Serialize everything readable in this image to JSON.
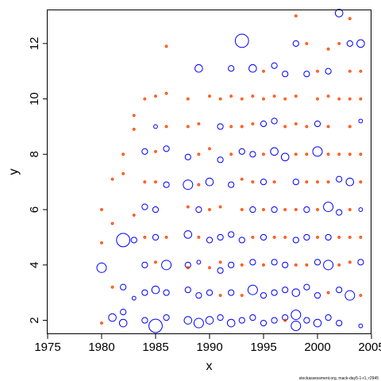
{
  "chart_data": {
    "type": "scatter",
    "title": "",
    "xlabel": "x",
    "ylabel": "y",
    "xlim": [
      1975,
      2005
    ],
    "ylim": [
      1.5,
      13.2
    ],
    "x_ticks": [
      1975,
      1980,
      1985,
      1990,
      1995,
      2000,
      2005
    ],
    "x_tick_labels": [
      "1975",
      "1980",
      "1985",
      "1990",
      "1995",
      "2000",
      "2005"
    ],
    "y_ticks": [
      2,
      4,
      6,
      8,
      10,
      12
    ],
    "y_tick_labels": [
      "2",
      "4",
      "6",
      "8",
      "10",
      "12"
    ],
    "grid": false,
    "legend": "none",
    "footnote": "stockassessment.org, mack-day5-1-r1, r2945",
    "colors": {
      "positive": "#0000ff",
      "negative": "#ff4500",
      "axis": "#000000"
    },
    "series": [
      {
        "name": "",
        "color": "#0000ff",
        "points": [
          [
            1980,
            3.9,
            5
          ],
          [
            1981,
            2.1,
            4
          ],
          [
            1982,
            1.9,
            4
          ],
          [
            1982,
            2.3,
            3
          ],
          [
            1982,
            3.2,
            3
          ],
          [
            1982,
            4.9,
            7
          ],
          [
            1983,
            4.9,
            3
          ],
          [
            1983,
            2.8,
            2
          ],
          [
            1984,
            2.0,
            3
          ],
          [
            1984,
            3.0,
            3
          ],
          [
            1984,
            4.0,
            3
          ],
          [
            1984,
            6.1,
            3
          ],
          [
            1984,
            8.1,
            3
          ],
          [
            1985,
            1.8,
            7
          ],
          [
            1985,
            3.1,
            4
          ],
          [
            1985,
            5.0,
            3
          ],
          [
            1985,
            6.0,
            3
          ],
          [
            1985,
            9.0,
            2
          ],
          [
            1986,
            2.1,
            3
          ],
          [
            1986,
            3.0,
            3
          ],
          [
            1986,
            4.0,
            5
          ],
          [
            1986,
            6.9,
            3
          ],
          [
            1986,
            8.2,
            3
          ],
          [
            1988,
            2.0,
            4
          ],
          [
            1988,
            3.1,
            3
          ],
          [
            1988,
            4.0,
            3
          ],
          [
            1988,
            5.1,
            4
          ],
          [
            1988,
            6.9,
            5
          ],
          [
            1988,
            7.9,
            3
          ],
          [
            1989,
            1.9,
            5
          ],
          [
            1989,
            2.9,
            3
          ],
          [
            1989,
            4.1,
            2
          ],
          [
            1989,
            6.0,
            3
          ],
          [
            1989,
            11.1,
            4
          ],
          [
            1990,
            2.0,
            4
          ],
          [
            1990,
            3.0,
            3
          ],
          [
            1990,
            4.9,
            3
          ],
          [
            1990,
            7.0,
            4
          ],
          [
            1991,
            2.1,
            3
          ],
          [
            1991,
            3.8,
            3
          ],
          [
            1991,
            5.0,
            3
          ],
          [
            1991,
            7.8,
            3
          ],
          [
            1991,
            9.0,
            3
          ],
          [
            1992,
            1.9,
            4
          ],
          [
            1992,
            3.0,
            3
          ],
          [
            1992,
            4.0,
            3
          ],
          [
            1992,
            5.1,
            3
          ],
          [
            1992,
            6.9,
            3
          ],
          [
            1992,
            11.1,
            3
          ],
          [
            1993,
            2.0,
            3
          ],
          [
            1993,
            4.9,
            3
          ],
          [
            1993,
            8.1,
            3
          ],
          [
            1993,
            12.1,
            7
          ],
          [
            1994,
            2.1,
            3
          ],
          [
            1994,
            3.1,
            5
          ],
          [
            1994,
            4.1,
            3
          ],
          [
            1994,
            6.0,
            3
          ],
          [
            1994,
            8.0,
            3
          ],
          [
            1994,
            11.1,
            4
          ],
          [
            1995,
            1.9,
            3
          ],
          [
            1995,
            2.9,
            3
          ],
          [
            1995,
            5.0,
            3
          ],
          [
            1995,
            7.0,
            3
          ],
          [
            1995,
            9.1,
            3
          ],
          [
            1996,
            2.0,
            3
          ],
          [
            1996,
            3.0,
            3
          ],
          [
            1996,
            4.1,
            3
          ],
          [
            1996,
            6.0,
            3
          ],
          [
            1996,
            8.1,
            4
          ],
          [
            1996,
            9.2,
            3
          ],
          [
            1996,
            11.2,
            3
          ],
          [
            1997,
            2.1,
            3
          ],
          [
            1997,
            3.1,
            3
          ],
          [
            1997,
            4.0,
            3
          ],
          [
            1997,
            7.9,
            4
          ],
          [
            1997,
            10.9,
            3
          ],
          [
            1998,
            1.8,
            5
          ],
          [
            1998,
            2.2,
            5
          ],
          [
            1998,
            3.0,
            4
          ],
          [
            1998,
            4.9,
            3
          ],
          [
            1998,
            7.0,
            3
          ],
          [
            1998,
            12.0,
            3
          ],
          [
            1999,
            2.0,
            3
          ],
          [
            1999,
            3.2,
            3
          ],
          [
            1999,
            5.0,
            3
          ],
          [
            1999,
            6.0,
            3
          ],
          [
            1999,
            10.9,
            3
          ],
          [
            2000,
            1.9,
            4
          ],
          [
            2000,
            2.9,
            3
          ],
          [
            2000,
            4.1,
            3
          ],
          [
            2000,
            8.1,
            5
          ],
          [
            2000,
            9.1,
            3
          ],
          [
            2001,
            2.1,
            3
          ],
          [
            2001,
            4.0,
            5
          ],
          [
            2001,
            5.0,
            3
          ],
          [
            2001,
            6.1,
            5
          ],
          [
            2001,
            11.0,
            3
          ],
          [
            2002,
            1.9,
            3
          ],
          [
            2002,
            3.1,
            3
          ],
          [
            2002,
            5.9,
            3
          ],
          [
            2002,
            7.1,
            3
          ],
          [
            2002,
            13.1,
            4
          ],
          [
            2003,
            2.9,
            5
          ],
          [
            2003,
            7.0,
            4
          ],
          [
            2003,
            12.0,
            3
          ],
          [
            2004,
            1.8,
            2
          ],
          [
            2004,
            4.1,
            3
          ],
          [
            2004,
            6.0,
            2
          ],
          [
            2004,
            9.2,
            2
          ],
          [
            2004,
            12.0,
            4
          ]
        ]
      },
      {
        "name": "",
        "color": "#ff4500",
        "points": [
          [
            1980,
            1.9,
            1
          ],
          [
            1980,
            4.8,
            1
          ],
          [
            1980,
            6.0,
            1
          ],
          [
            1981,
            3.2,
            1
          ],
          [
            1981,
            5.5,
            1
          ],
          [
            1981,
            7.1,
            1
          ],
          [
            1982,
            7.3,
            1
          ],
          [
            1982,
            8.0,
            1
          ],
          [
            1983,
            5.8,
            1
          ],
          [
            1983,
            8.9,
            1
          ],
          [
            1983,
            9.4,
            1
          ],
          [
            1984,
            5.0,
            1
          ],
          [
            1984,
            7.0,
            1
          ],
          [
            1984,
            10.0,
            1
          ],
          [
            1985,
            4.1,
            1
          ],
          [
            1985,
            7.0,
            1
          ],
          [
            1985,
            8.1,
            1
          ],
          [
            1985,
            10.1,
            1
          ],
          [
            1986,
            5.0,
            1
          ],
          [
            1986,
            9.0,
            1
          ],
          [
            1986,
            10.2,
            1
          ],
          [
            1986,
            11.9,
            1
          ],
          [
            1988,
            3.9,
            1
          ],
          [
            1988,
            6.1,
            1
          ],
          [
            1988,
            9.0,
            1
          ],
          [
            1988,
            10.0,
            1
          ],
          [
            1989,
            5.0,
            1
          ],
          [
            1989,
            6.9,
            1
          ],
          [
            1989,
            8.0,
            1
          ],
          [
            1989,
            9.1,
            1
          ],
          [
            1990,
            3.9,
            1
          ],
          [
            1990,
            6.0,
            1
          ],
          [
            1990,
            8.2,
            1
          ],
          [
            1990,
            10.1,
            1
          ],
          [
            1991,
            2.9,
            1
          ],
          [
            1991,
            4.1,
            1
          ],
          [
            1991,
            6.1,
            1
          ],
          [
            1991,
            10.0,
            1
          ],
          [
            1992,
            8.0,
            1
          ],
          [
            1992,
            9.0,
            1
          ],
          [
            1992,
            10.1,
            1
          ],
          [
            1993,
            2.9,
            1
          ],
          [
            1993,
            4.0,
            1
          ],
          [
            1993,
            6.0,
            1
          ],
          [
            1993,
            7.1,
            1
          ],
          [
            1993,
            9.0,
            1
          ],
          [
            1993,
            10.0,
            1
          ],
          [
            1994,
            5.0,
            1
          ],
          [
            1994,
            7.0,
            1
          ],
          [
            1994,
            9.1,
            1
          ],
          [
            1994,
            10.1,
            1
          ],
          [
            1995,
            4.0,
            1
          ],
          [
            1995,
            6.0,
            1
          ],
          [
            1995,
            8.0,
            1
          ],
          [
            1995,
            10.0,
            1
          ],
          [
            1995,
            11.0,
            1
          ],
          [
            1996,
            5.0,
            1
          ],
          [
            1996,
            7.0,
            1
          ],
          [
            1996,
            10.1,
            1
          ],
          [
            1997,
            2.0,
            1
          ],
          [
            1997,
            5.0,
            1
          ],
          [
            1997,
            6.0,
            1
          ],
          [
            1997,
            9.0,
            1
          ],
          [
            1997,
            10.0,
            1
          ],
          [
            1998,
            4.0,
            1
          ],
          [
            1998,
            6.0,
            1
          ],
          [
            1998,
            8.0,
            1
          ],
          [
            1998,
            9.1,
            1
          ],
          [
            1998,
            10.1,
            1
          ],
          [
            1998,
            13.0,
            1
          ],
          [
            1999,
            4.0,
            1
          ],
          [
            1999,
            7.0,
            1
          ],
          [
            1999,
            8.0,
            1
          ],
          [
            1999,
            9.0,
            1
          ],
          [
            1999,
            12.0,
            1
          ],
          [
            2000,
            5.0,
            1
          ],
          [
            2000,
            6.0,
            1
          ],
          [
            2000,
            7.0,
            1
          ],
          [
            2000,
            10.0,
            1
          ],
          [
            2000,
            11.0,
            1
          ],
          [
            2001,
            3.0,
            1
          ],
          [
            2001,
            7.0,
            1
          ],
          [
            2001,
            8.0,
            1
          ],
          [
            2001,
            9.0,
            1
          ],
          [
            2001,
            10.1,
            1
          ],
          [
            2001,
            11.8,
            1
          ],
          [
            2002,
            4.0,
            1
          ],
          [
            2002,
            5.0,
            1
          ],
          [
            2002,
            8.0,
            1
          ],
          [
            2002,
            10.0,
            1
          ],
          [
            2002,
            12.0,
            1
          ],
          [
            2003,
            4.1,
            1
          ],
          [
            2003,
            5.0,
            1
          ],
          [
            2003,
            6.0,
            1
          ],
          [
            2003,
            8.0,
            1
          ],
          [
            2003,
            9.0,
            1
          ],
          [
            2003,
            10.0,
            1
          ],
          [
            2003,
            11.0,
            1
          ],
          [
            2003,
            12.9,
            1
          ],
          [
            2004,
            2.9,
            1
          ],
          [
            2004,
            5.0,
            1
          ],
          [
            2004,
            7.0,
            1
          ],
          [
            2004,
            8.0,
            1
          ],
          [
            2004,
            10.0,
            1
          ],
          [
            2004,
            11.0,
            1
          ]
        ]
      }
    ]
  }
}
